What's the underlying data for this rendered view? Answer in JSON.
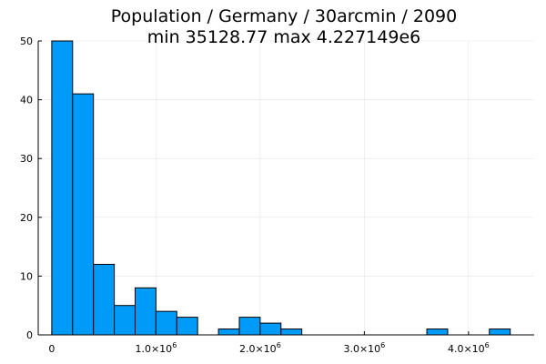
{
  "chart_data": {
    "type": "bar",
    "title": "Population / Germany / 30arcmin / 2090",
    "subtitle": "min 35128.77  max 4.227149e6",
    "xlabel": "",
    "ylabel": "",
    "bin_width": 200000,
    "bin_starts": [
      0,
      200000,
      400000,
      600000,
      800000,
      1000000,
      1200000,
      1400000,
      1600000,
      1800000,
      2000000,
      2200000,
      2400000,
      2600000,
      2800000,
      3000000,
      3200000,
      3400000,
      3600000,
      3800000,
      4000000,
      4200000
    ],
    "values": [
      50,
      41,
      12,
      5,
      8,
      4,
      3,
      0,
      1,
      3,
      2,
      1,
      0,
      0,
      0,
      0,
      0,
      0,
      1,
      0,
      0,
      1
    ],
    "xlim": [
      -130000,
      4630000
    ],
    "ylim": [
      0,
      50
    ],
    "xticks": [
      {
        "value": 0,
        "mantissa": "0",
        "exponent": ""
      },
      {
        "value": 1000000,
        "mantissa": "1.0×10",
        "exponent": "6"
      },
      {
        "value": 2000000,
        "mantissa": "2.0×10",
        "exponent": "6"
      },
      {
        "value": 3000000,
        "mantissa": "3.0×10",
        "exponent": "6"
      },
      {
        "value": 4000000,
        "mantissa": "4.0×10",
        "exponent": "6"
      }
    ],
    "yticks": [
      {
        "value": 0,
        "label": "0"
      },
      {
        "value": 10,
        "label": "10"
      },
      {
        "value": 20,
        "label": "20"
      },
      {
        "value": 30,
        "label": "30"
      },
      {
        "value": 40,
        "label": "40"
      },
      {
        "value": 50,
        "label": "50"
      }
    ],
    "grid": true,
    "legend": "none",
    "bar_color": "#009AF9",
    "edge_color": "#000000"
  }
}
